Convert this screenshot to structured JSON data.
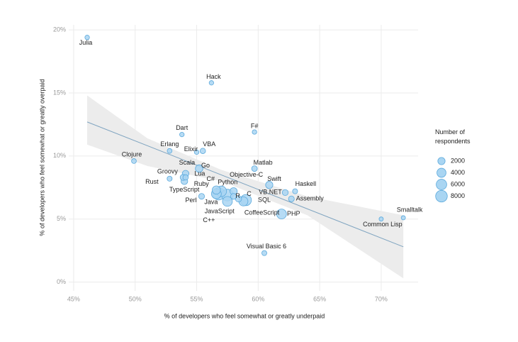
{
  "chart_data": {
    "type": "scatter",
    "xlabel": "% of developers who feel somewhat or greatly underpaid",
    "ylabel": "% of developers who feel somewhat or greatly overpaid",
    "xlim": [
      44.6,
      73
    ],
    "ylim": [
      -0.7,
      20.4
    ],
    "xticks": [
      {
        "value": 45,
        "label": "45%"
      },
      {
        "value": 50,
        "label": "50%"
      },
      {
        "value": 55,
        "label": "55%"
      },
      {
        "value": 60,
        "label": "60%"
      },
      {
        "value": 65,
        "label": "65%"
      },
      {
        "value": 70,
        "label": "70%"
      }
    ],
    "yticks": [
      {
        "value": 0,
        "label": "0%"
      },
      {
        "value": 5,
        "label": "5%"
      },
      {
        "value": 10,
        "label": "10%"
      },
      {
        "value": 15,
        "label": "15%"
      },
      {
        "value": 20,
        "label": "20%"
      }
    ],
    "grid": true,
    "color": "#a9d5f2",
    "edge_color": "#5ba9dc",
    "labels": [
      "Julia",
      "Hack",
      "F#",
      "Dart",
      "Erlang",
      "VBA",
      "Elixir",
      "Clojure",
      "Matlab",
      "Go",
      "Scala",
      "Groovy",
      "Lua",
      "Rust",
      "TypeScript",
      "Swift",
      "Haskell",
      "Objective-C",
      "C#",
      "Python",
      "Ruby",
      "Java",
      "R",
      "C",
      "VB.NET",
      "Assembly",
      "Perl",
      "JavaScript",
      "SQL",
      "C++",
      "CoffeeScript",
      "PHP",
      "Smalltalk",
      "Common Lisp",
      "Visual Basic 6"
    ],
    "x": [
      46.1,
      56.2,
      59.7,
      53.8,
      52.8,
      55.5,
      55.0,
      49.9,
      59.7,
      55.2,
      54.1,
      53.9,
      54.1,
      52.8,
      54.0,
      60.9,
      63.0,
      58.0,
      57.0,
      56.6,
      56.6,
      57.5,
      58.0,
      58.8,
      62.2,
      62.7,
      55.4,
      56.8,
      59.0,
      57.5,
      58.4,
      61.9,
      71.8,
      70.0,
      60.5
    ],
    "y": [
      19.4,
      15.8,
      11.9,
      11.7,
      10.4,
      10.4,
      10.3,
      9.6,
      9.0,
      9.0,
      8.6,
      8.3,
      8.3,
      8.2,
      8.0,
      7.7,
      7.2,
      7.2,
      7.2,
      7.0,
      7.3,
      6.9,
      6.8,
      6.4,
      7.1,
      6.6,
      6.8,
      7.0,
      6.5,
      6.4,
      6.6,
      5.4,
      5.1,
      5.0,
      2.3
    ],
    "sizes": [
      300,
      300,
      300,
      300,
      400,
      700,
      300,
      400,
      800,
      2200,
      1500,
      1000,
      700,
      500,
      1500,
      2000,
      500,
      2000,
      6000,
      5000,
      3000,
      8000,
      1000,
      4000,
      1000,
      900,
      900,
      9000,
      7000,
      5000,
      1200,
      5000,
      200,
      200,
      500
    ],
    "trend": {
      "color": "#7fa4c0",
      "x": [
        46.1,
        71.8
      ],
      "y": [
        12.7,
        2.8
      ]
    },
    "band": {
      "color": "#ececec",
      "x": [
        46.1,
        51,
        57,
        64,
        71.8
      ],
      "lower": [
        10.9,
        9.2,
        8.0,
        5.3,
        0.3
      ],
      "upper": [
        14.8,
        11.4,
        8.9,
        6.8,
        5.3
      ]
    },
    "legend_title": "Number of respondents",
    "legend_sizes": [
      2000,
      4000,
      6000,
      8000
    ]
  }
}
